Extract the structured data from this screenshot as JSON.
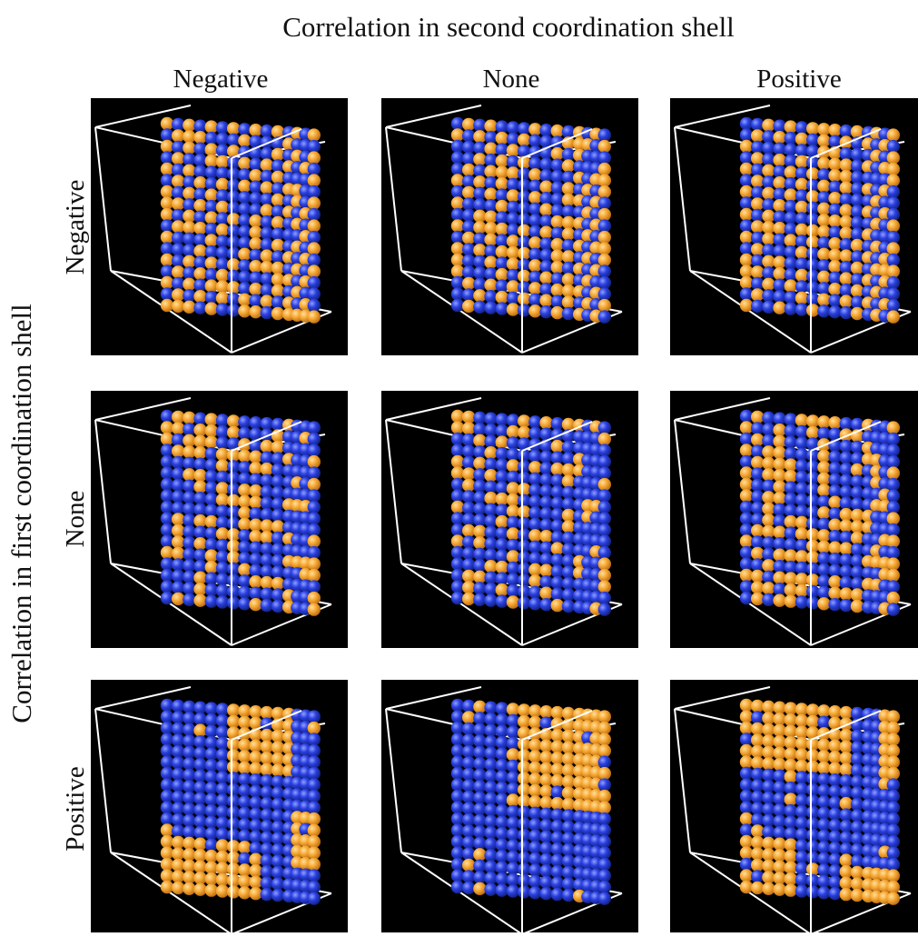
{
  "header": {
    "title": "Correlation in second coordination shell",
    "columns": [
      "Negative",
      "None",
      "Positive"
    ]
  },
  "side": {
    "title": "Correlation in first coordination shell",
    "rows": [
      "Negative",
      "None",
      "Positive"
    ]
  }
}
